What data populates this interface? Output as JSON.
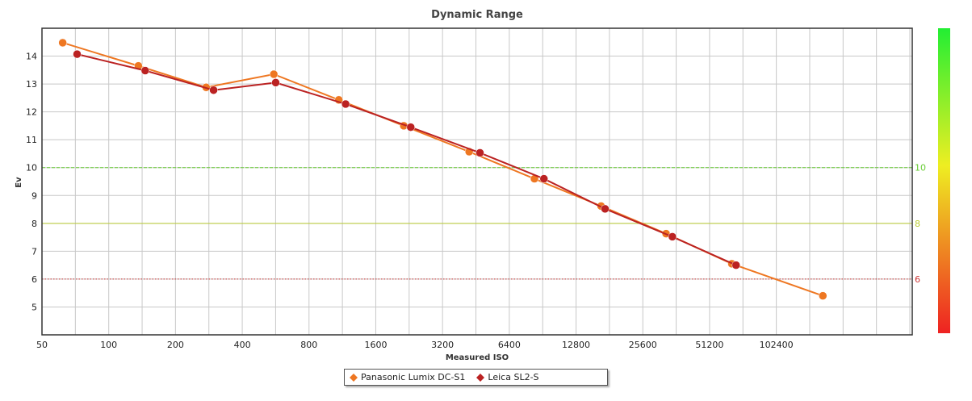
{
  "chart_data": {
    "type": "line",
    "title": "Dynamic Range",
    "xlabel": "Measured ISO",
    "ylabel": "Ev",
    "x_scale": "log2",
    "x_ticks": [
      "50",
      "100",
      "200",
      "400",
      "800",
      "1600",
      "3200",
      "6400",
      "12800",
      "25600",
      "51200",
      "102400"
    ],
    "y_ticks": [
      "5",
      "6",
      "7",
      "8",
      "9",
      "10",
      "11",
      "12",
      "13",
      "14"
    ],
    "ylim": [
      4,
      15
    ],
    "xlim": [
      50,
      420000
    ],
    "reference_lines": [
      {
        "value": 10,
        "label": "10",
        "color": "#66cc33",
        "style": "dashed"
      },
      {
        "value": 8,
        "label": "8",
        "color": "#bbcc33",
        "style": "solid"
      },
      {
        "value": 6,
        "label": "6",
        "color": "#cc3333",
        "style": "dotted"
      }
    ],
    "series": [
      {
        "name": "Panasonic Lumix DC-S1",
        "color": "#ee7722",
        "points": [
          [
            62,
            14.48
          ],
          [
            136,
            13.65
          ],
          [
            275,
            12.88
          ],
          [
            555,
            13.35
          ],
          [
            1090,
            12.43
          ],
          [
            2140,
            11.5
          ],
          [
            4220,
            10.57
          ],
          [
            8310,
            9.6
          ],
          [
            16600,
            8.62
          ],
          [
            32600,
            7.63
          ],
          [
            64500,
            6.55
          ],
          [
            166000,
            5.4
          ]
        ]
      },
      {
        "name": "Leica SL2-S",
        "color": "#bb2222",
        "points": [
          [
            72,
            14.07
          ],
          [
            146,
            13.48
          ],
          [
            297,
            12.78
          ],
          [
            566,
            13.05
          ],
          [
            1170,
            12.28
          ],
          [
            2300,
            11.45
          ],
          [
            4720,
            10.53
          ],
          [
            9170,
            9.6
          ],
          [
            17300,
            8.52
          ],
          [
            34800,
            7.52
          ],
          [
            67400,
            6.5
          ]
        ]
      }
    ],
    "legend": [
      "Panasonic Lumix DC-S1",
      "Leica SL2-S"
    ],
    "gradient_bar_colors": [
      "#22ee33",
      "#eeee22",
      "#ee2222"
    ]
  }
}
